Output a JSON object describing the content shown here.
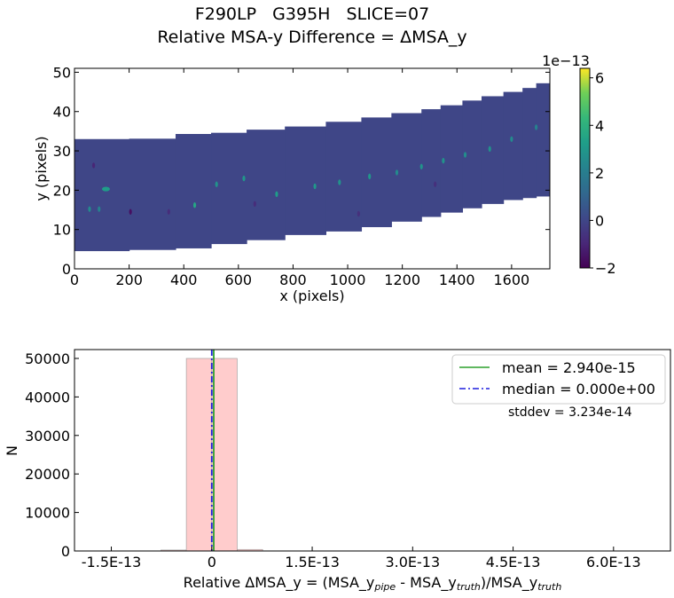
{
  "figure": {
    "title_line1": "F290LP   G395H   SLICE=07",
    "title_line2": "Relative MSA-y Difference = ΔMSA_y"
  },
  "chart_data": [
    {
      "type": "heatmap",
      "xlabel": "x (pixels)",
      "ylabel": "y (pixels)",
      "xlim": [
        0,
        1740
      ],
      "ylim": [
        0,
        51
      ],
      "xticks": [
        0,
        200,
        400,
        600,
        800,
        1000,
        1200,
        1400,
        1600
      ],
      "yticks": [
        0,
        10,
        20,
        30,
        40,
        50
      ],
      "colorbar": {
        "colormap": "viridis",
        "range": [
          -2.0,
          6.4
        ],
        "ticks": [
          -2,
          0,
          2,
          4,
          6
        ],
        "offset_label": "1e−13"
      },
      "strip_segments": [
        {
          "x0": 0,
          "x1": 200,
          "ylo": 4.5,
          "yhi": 33
        },
        {
          "x0": 200,
          "x1": 370,
          "ylo": 4.8,
          "yhi": 33.1
        },
        {
          "x0": 370,
          "x1": 500,
          "ylo": 5.2,
          "yhi": 34.3
        },
        {
          "x0": 500,
          "x1": 630,
          "ylo": 6.3,
          "yhi": 34.6
        },
        {
          "x0": 630,
          "x1": 770,
          "ylo": 7.3,
          "yhi": 35.4
        },
        {
          "x0": 770,
          "x1": 920,
          "ylo": 8.6,
          "yhi": 36.2
        },
        {
          "x0": 920,
          "x1": 1050,
          "ylo": 9.5,
          "yhi": 37.4
        },
        {
          "x0": 1050,
          "x1": 1160,
          "ylo": 10.6,
          "yhi": 38.5
        },
        {
          "x0": 1160,
          "x1": 1270,
          "ylo": 12.0,
          "yhi": 39.6
        },
        {
          "x0": 1270,
          "x1": 1340,
          "ylo": 13.2,
          "yhi": 40.6
        },
        {
          "x0": 1340,
          "x1": 1420,
          "ylo": 14.3,
          "yhi": 41.6
        },
        {
          "x0": 1420,
          "x1": 1490,
          "ylo": 15.4,
          "yhi": 42.8
        },
        {
          "x0": 1490,
          "x1": 1570,
          "ylo": 16.5,
          "yhi": 43.9
        },
        {
          "x0": 1570,
          "x1": 1640,
          "ylo": 17.5,
          "yhi": 45.0
        },
        {
          "x0": 1640,
          "x1": 1690,
          "ylo": 18.0,
          "yhi": 46.0
        },
        {
          "x0": 1690,
          "x1": 1740,
          "ylo": 18.4,
          "yhi": 47.2
        }
      ],
      "background_value": 0.0,
      "features": [
        {
          "x": 115,
          "y": 20.3,
          "value": 3.2
        },
        {
          "x": 55,
          "y": 15.2,
          "value": 2.5
        },
        {
          "x": 90,
          "y": 15.2,
          "value": 2.2
        },
        {
          "x": 70,
          "y": 26.3,
          "value": -1.0
        },
        {
          "x": 205,
          "y": 14.5,
          "value": -1.6
        },
        {
          "x": 440,
          "y": 16.2,
          "value": 3.6
        },
        {
          "x": 520,
          "y": 21.5,
          "value": 2.8
        },
        {
          "x": 620,
          "y": 23.0,
          "value": 3.0
        },
        {
          "x": 740,
          "y": 19.0,
          "value": 3.2
        },
        {
          "x": 880,
          "y": 21.0,
          "value": 3.0
        },
        {
          "x": 970,
          "y": 22.0,
          "value": 2.8
        },
        {
          "x": 1080,
          "y": 23.5,
          "value": 3.0
        },
        {
          "x": 1180,
          "y": 24.5,
          "value": 2.5
        },
        {
          "x": 1270,
          "y": 26.0,
          "value": 2.8
        },
        {
          "x": 1350,
          "y": 27.5,
          "value": 2.8
        },
        {
          "x": 1430,
          "y": 29.0,
          "value": 2.6
        },
        {
          "x": 1520,
          "y": 30.5,
          "value": 2.8
        },
        {
          "x": 1600,
          "y": 33.0,
          "value": 2.5
        },
        {
          "x": 1690,
          "y": 36.0,
          "value": 2.2
        },
        {
          "x": 345,
          "y": 14.5,
          "value": -0.8
        },
        {
          "x": 660,
          "y": 16.5,
          "value": -0.8
        },
        {
          "x": 1040,
          "y": 14.0,
          "value": -0.7
        },
        {
          "x": 1320,
          "y": 21.5,
          "value": -0.7
        }
      ]
    },
    {
      "type": "bar",
      "xlabel_main": "Relative ΔMSA_y = (MSA_y",
      "xlabel_sub1": "pipe",
      "xlabel_mid": " - MSA_y",
      "xlabel_sub2": "truth",
      "xlabel_tail": ")/MSA_y",
      "xlabel_sub3": "truth",
      "ylabel": "N",
      "xlim": [
        -2.05e-13,
        6.85e-13
      ],
      "ylim": [
        0,
        52300
      ],
      "xticks": [
        -1.5e-13,
        0,
        1.5e-13,
        3e-13,
        4.5e-13,
        6e-13
      ],
      "xtick_labels": [
        "-1.5E-13",
        "0",
        "1.5E-13",
        "3.0E-13",
        "4.5E-13",
        "6.0E-13"
      ],
      "yticks": [
        0,
        10000,
        20000,
        30000,
        40000,
        50000
      ],
      "ytick_labels": [
        "0",
        "10000",
        "20000",
        "30000",
        "40000",
        "50000"
      ],
      "bar_color": "#ffcccc",
      "bins": [
        {
          "x0": -1.9e-13,
          "x1": -1.52e-13,
          "count": 0
        },
        {
          "x0": -1.52e-13,
          "x1": -1.14e-13,
          "count": 0
        },
        {
          "x0": -1.14e-13,
          "x1": -7.6e-14,
          "count": 20
        },
        {
          "x0": -7.6e-14,
          "x1": -3.8e-14,
          "count": 250
        },
        {
          "x0": -3.8e-14,
          "x1": 0.0,
          "count": 50000
        },
        {
          "x0": 0.0,
          "x1": 3.8e-14,
          "count": 50000
        },
        {
          "x0": 3.8e-14,
          "x1": 7.6e-14,
          "count": 400
        },
        {
          "x0": 7.6e-14,
          "x1": 1.14e-13,
          "count": 10
        }
      ],
      "mean_value": 2.94e-15,
      "median_value": 0.0,
      "mean_color": "#2ca02c",
      "median_color": "#1f1fdd",
      "legend": [
        {
          "label": "mean = 2.940e-15",
          "style": "solid",
          "color": "#2ca02c"
        },
        {
          "label": "median = 0.000e+00",
          "style": "dashdot",
          "color": "#1f1fdd"
        }
      ],
      "legend_position": "top-right",
      "stddev_text": "stddev = 3.234e-14"
    }
  ]
}
